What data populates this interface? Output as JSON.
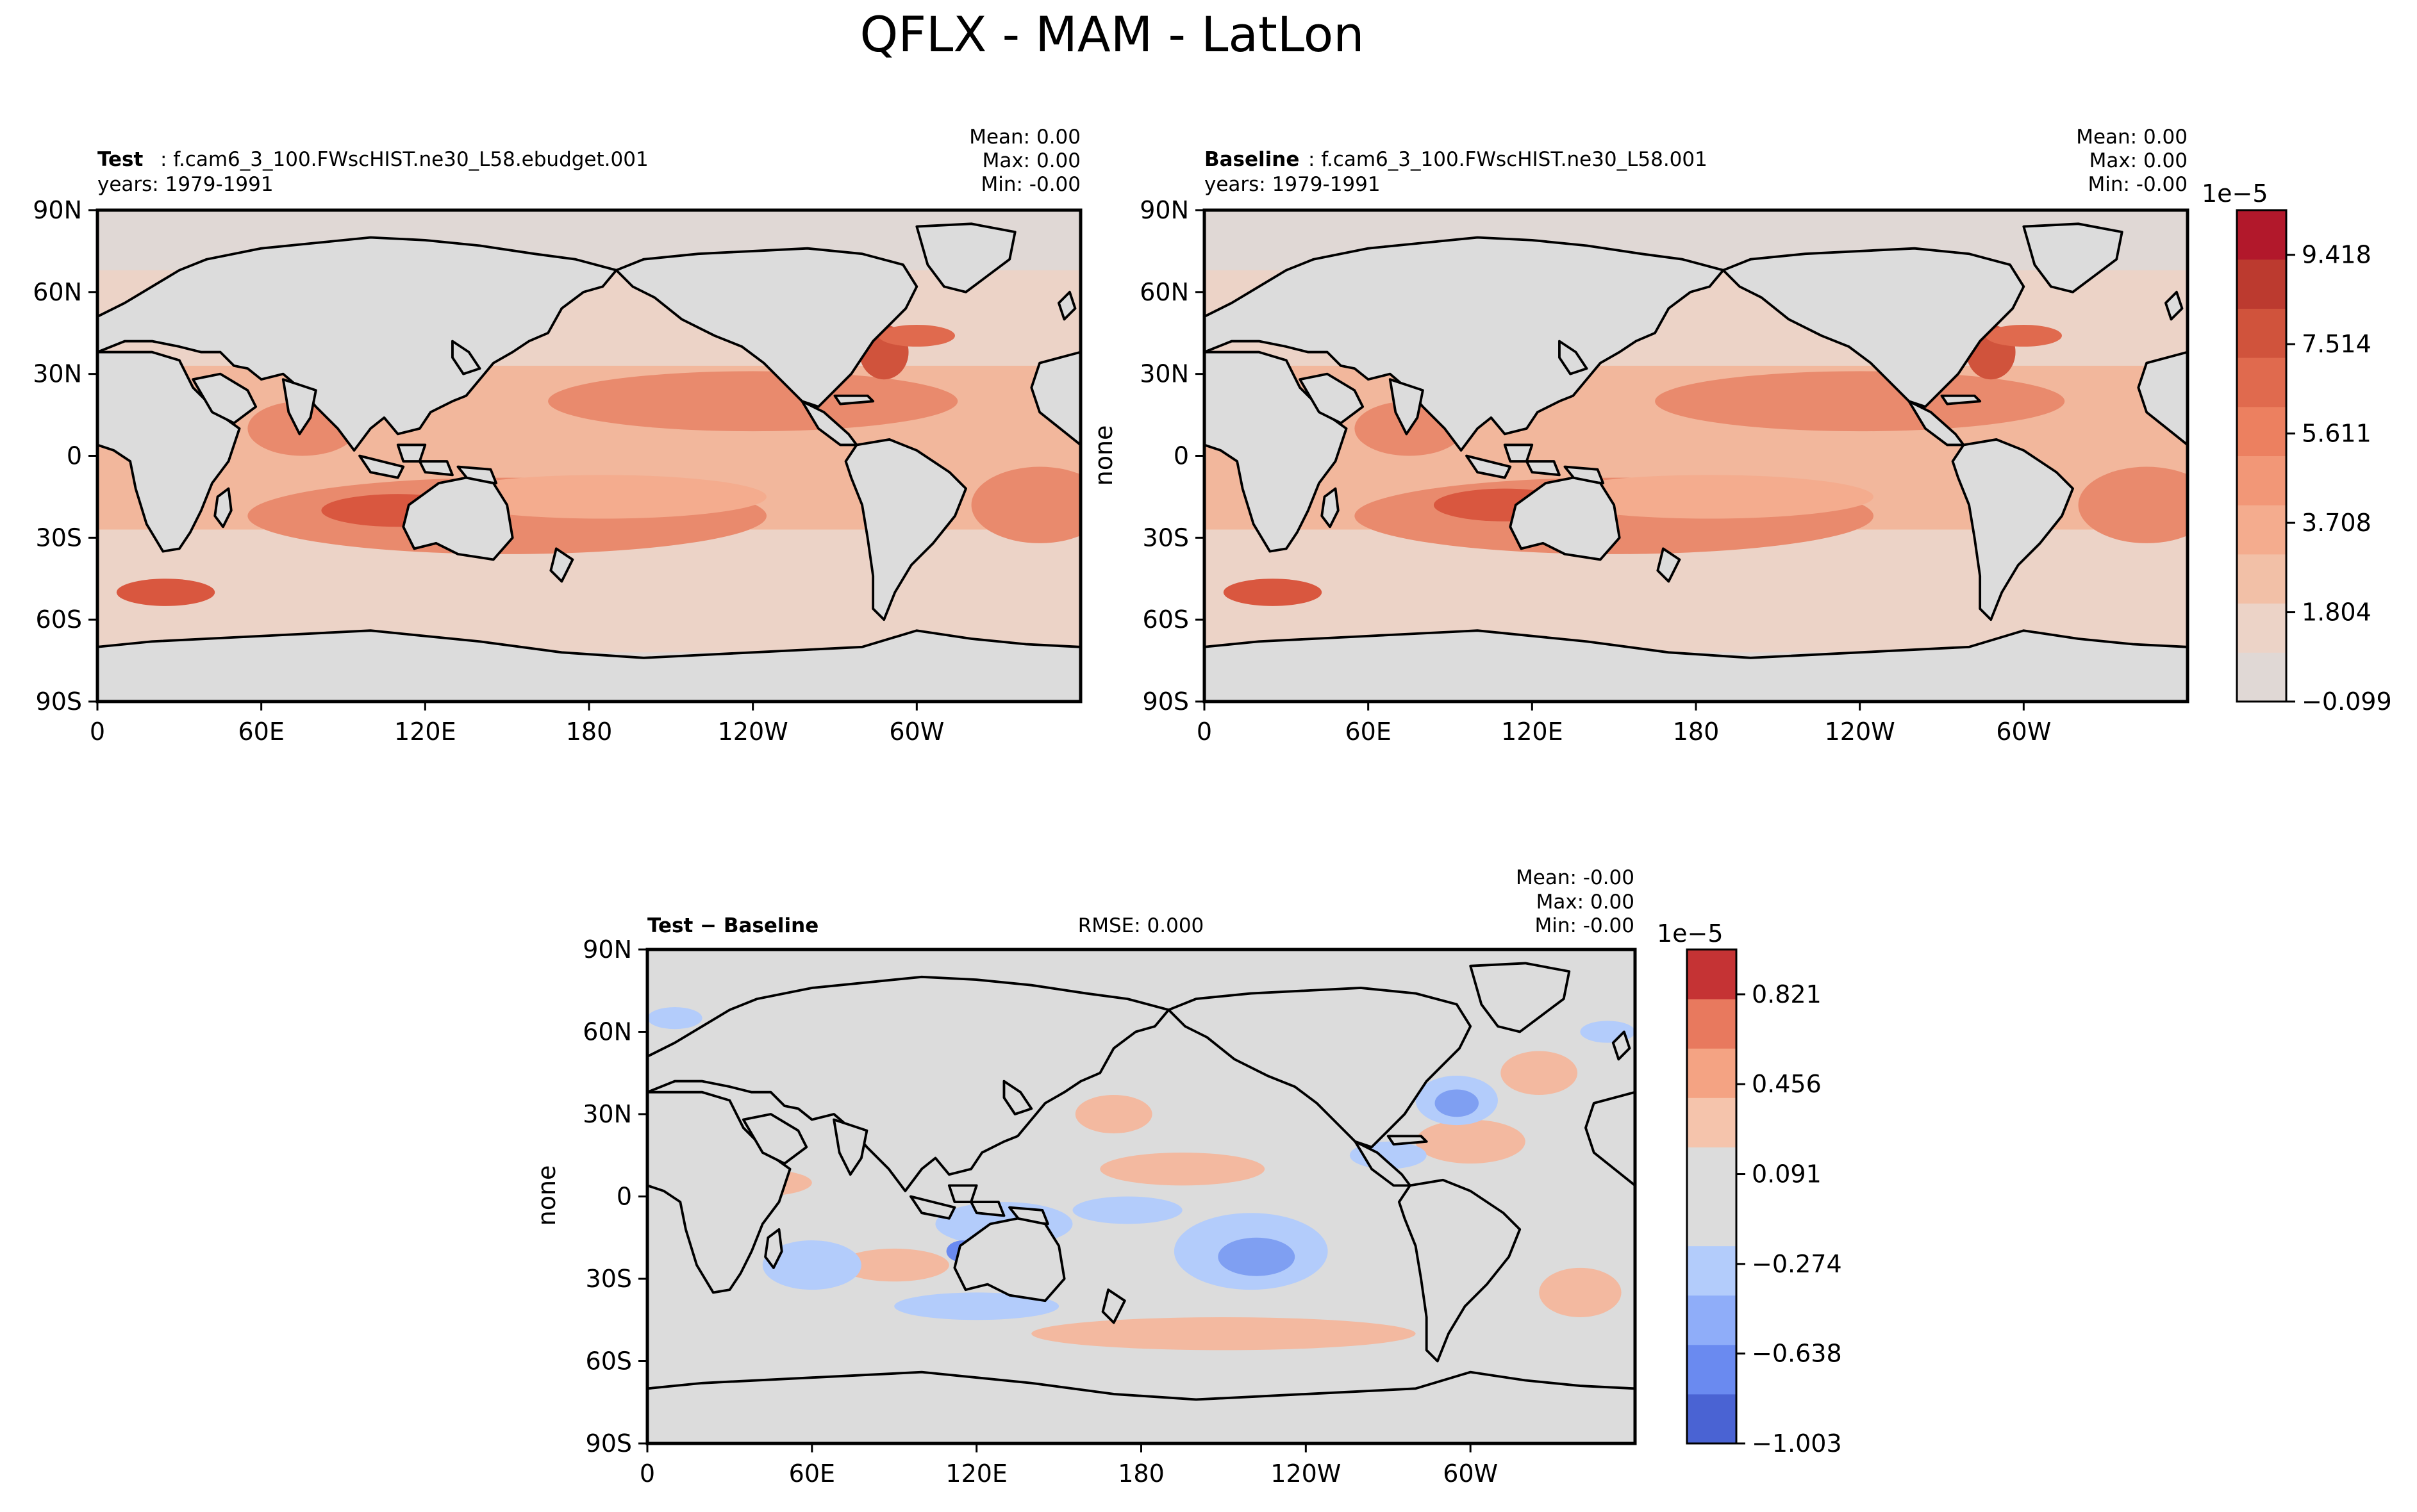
{
  "figure": {
    "title": "QFLX - MAM - LatLon"
  },
  "chart_data": [
    {
      "type": "heatmap",
      "panel": "test",
      "label_bold": "Test",
      "label_rest": ": f.cam6_3_100.FWscHIST.ne30_L58.ebudget.001",
      "years": "years: 1979-1991",
      "stats": [
        "Mean:  0.00",
        "Max:  0.00",
        "Min: -0.00"
      ],
      "ylabel": "",
      "x_ticks": [
        "0",
        "60E",
        "120E",
        "180",
        "120W",
        "60W"
      ],
      "y_ticks": [
        "90N",
        "60N",
        "30N",
        "0",
        "30S",
        "60S",
        "90S"
      ],
      "xlim": [
        0,
        360
      ],
      "ylim": [
        -90,
        90
      ]
    },
    {
      "type": "heatmap",
      "panel": "baseline",
      "label_bold": "Baseline",
      "label_rest": ": f.cam6_3_100.FWscHIST.ne30_L58.001",
      "years": "years: 1979-1991",
      "stats": [
        "Mean:  0.00",
        "Max:  0.00",
        "Min: -0.00"
      ],
      "ylabel": "none",
      "x_ticks": [
        "0",
        "60E",
        "120E",
        "180",
        "120W",
        "60W"
      ],
      "y_ticks": [
        "90N",
        "60N",
        "30N",
        "0",
        "30S",
        "60S",
        "90S"
      ],
      "xlim": [
        0,
        360
      ],
      "ylim": [
        -90,
        90
      ]
    },
    {
      "type": "heatmap",
      "panel": "difference",
      "label_bold": "Test − Baseline",
      "rmse": "RMSE: 0.000",
      "stats": [
        "Mean: -0.00",
        "Max:  0.00",
        "Min: -0.00"
      ],
      "ylabel": "none",
      "x_ticks": [
        "0",
        "60E",
        "120E",
        "180",
        "120W",
        "60W"
      ],
      "y_ticks": [
        "90N",
        "60N",
        "30N",
        "0",
        "30S",
        "60S",
        "90S"
      ],
      "xlim": [
        0,
        360
      ],
      "ylim": [
        -90,
        90
      ]
    }
  ],
  "colorbars": [
    {
      "exponent": "1e−5",
      "tick_labels": [
        "9.418",
        "7.514",
        "5.611",
        "3.708",
        "1.804",
        "−0.099"
      ],
      "tick_values": [
        9.418,
        7.514,
        5.611,
        3.708,
        1.804,
        -0.099
      ],
      "range": [
        -0.099,
        10.37
      ],
      "colors": [
        "#e0d8d5",
        "#ecd3c7",
        "#f2c0a7",
        "#f4ac8e",
        "#f29777",
        "#ec8060",
        "#e06a4e",
        "#d0533c",
        "#bc3a2f",
        "#b2182b"
      ]
    },
    {
      "exponent": "1e−5",
      "tick_labels": [
        "0.821",
        "0.456",
        "0.091",
        "−0.274",
        "−0.638",
        "−1.003"
      ],
      "tick_values": [
        0.821,
        0.456,
        0.091,
        -0.274,
        -0.638,
        -1.003
      ],
      "range": [
        -1.003,
        1.003
      ],
      "colors": [
        "#4a63d3",
        "#6a8af0",
        "#8fadf9",
        "#b3ccfb",
        "#dcdcdc",
        "#dcdcdc",
        "#f5c4ac",
        "#f4a383",
        "#e8795e",
        "#c53334"
      ]
    }
  ],
  "colors": {
    "land": "#dcdcdc",
    "ocean_low": "#ecd3c7",
    "ocean_mid": "#f2b79c",
    "ocean_high": "#e98a6d",
    "ocean_peak": "#d9573f",
    "diff_pos": "#f3b9a0",
    "diff_neg": "#b3ccfb",
    "diff_strong_neg": "#7f9ff2",
    "coast": "#000000"
  }
}
